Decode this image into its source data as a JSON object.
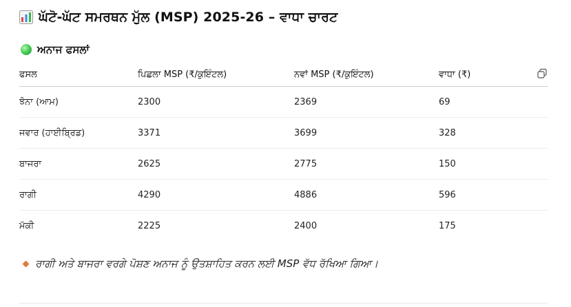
{
  "header": {
    "icon": "bar-chart-emoji",
    "title": "ਘੱਟੋ-ਘੱਟ ਸਮਰਥਨ ਮੁੱਲ (MSP) 2025-26 – ਵਾਧਾ ਚਾਰਟ"
  },
  "section": {
    "icon": "green-circle-emoji",
    "title": "ਅਨਾਜ ਫਸਲਾਂ"
  },
  "table": {
    "headers": [
      "ਫਸਲ",
      "ਪਿਛਲਾ MSP (₹/ਕੁਇੰਟਲ)",
      "ਨਵਾਂ MSP (₹/ਕੁਇੰਟਲ)",
      "ਵਾਧਾ (₹)"
    ],
    "copy_icon": "copy-icon",
    "rows": [
      [
        "ਝੋਨਾ (ਆਮ)",
        "2300",
        "2369",
        "69"
      ],
      [
        "ਜਵਾਰ (ਹਾਈਬ੍ਰਿਡ)",
        "3371",
        "3699",
        "328"
      ],
      [
        "ਬਾਜਰਾ",
        "2625",
        "2775",
        "150"
      ],
      [
        "ਰਾਗੀ",
        "4290",
        "4886",
        "596"
      ],
      [
        "ਮੱਕੀ",
        "2225",
        "2400",
        "175"
      ]
    ]
  },
  "note": {
    "icon": "orange-diamond-icon",
    "text": "ਰਾਗੀ ਅਤੇ ਬਾਜਰਾ ਵਰਗੇ ਪੋਸ਼ਣ ਅਨਾਜ ਨੂੰ ਉਤਸ਼ਾਹਿਤ ਕਰਨ ਲਈ MSP ਵੱਧ ਰੱਖਿਆ ਗਿਆ।"
  },
  "colors": {
    "accent_green": "#2eaa4a",
    "note_diamond": "#e07a3a",
    "rule": "#cfcfcf"
  }
}
